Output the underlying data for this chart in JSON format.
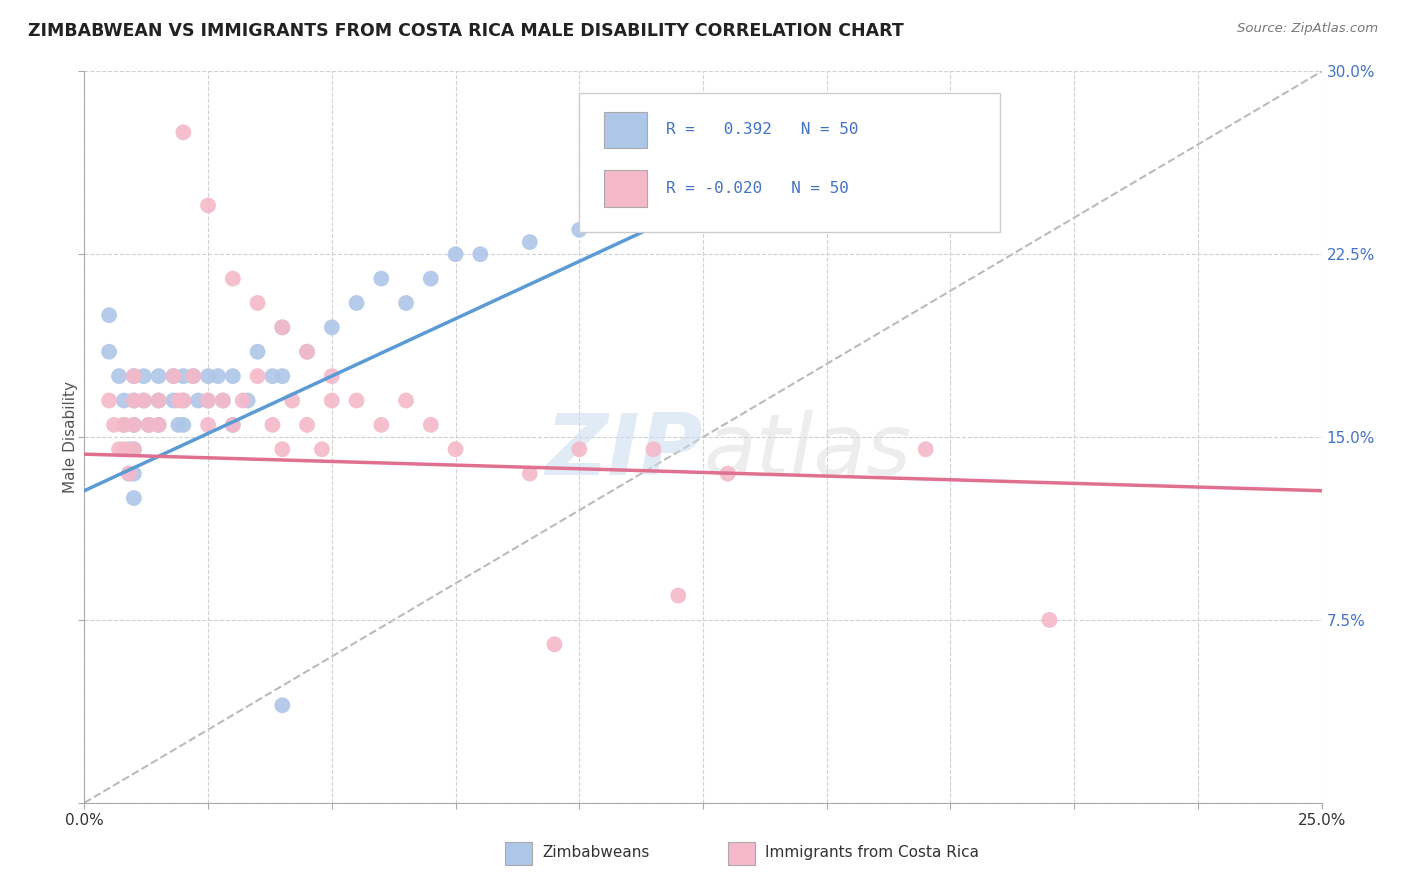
{
  "title": "ZIMBABWEAN VS IMMIGRANTS FROM COSTA RICA MALE DISABILITY CORRELATION CHART",
  "source": "Source: ZipAtlas.com",
  "ylabel": "Male Disability",
  "xlim": [
    0.0,
    0.25
  ],
  "ylim": [
    0.0,
    0.3
  ],
  "x_ticks": [
    0.0,
    0.025,
    0.05,
    0.075,
    0.1,
    0.125,
    0.15,
    0.175,
    0.2,
    0.225,
    0.25
  ],
  "x_tick_labels_shown": {
    "0.0": "0.0%",
    "0.25": "25.0%"
  },
  "y_ticks": [
    0.0,
    0.075,
    0.15,
    0.225,
    0.3
  ],
  "y_tick_labels": [
    "",
    "7.5%",
    "15.0%",
    "22.5%",
    "30.0%"
  ],
  "legend_entries": [
    "Zimbabweans",
    "Immigrants from Costa Rica"
  ],
  "blue_R": "0.392",
  "blue_N": "50",
  "pink_R": "-0.020",
  "pink_N": "50",
  "blue_color": "#aec6e8",
  "pink_color": "#f5b8c8",
  "blue_line_color": "#5b9bd5",
  "pink_line_color": "#e07090",
  "diag_line_color": "#bbbbbb",
  "watermark_color": "#d0e4f0",
  "blue_line_x": [
    0.0,
    0.135
  ],
  "blue_line_y": [
    0.128,
    0.255
  ],
  "pink_line_x": [
    0.0,
    0.25
  ],
  "pink_line_y": [
    0.143,
    0.128
  ],
  "diag_line_x": [
    0.0,
    0.25
  ],
  "diag_line_y": [
    0.0,
    0.3
  ],
  "blue_scatter_x": [
    0.005,
    0.005,
    0.007,
    0.008,
    0.008,
    0.009,
    0.009,
    0.01,
    0.01,
    0.01,
    0.01,
    0.01,
    0.01,
    0.012,
    0.012,
    0.013,
    0.015,
    0.015,
    0.015,
    0.018,
    0.018,
    0.019,
    0.02,
    0.02,
    0.02,
    0.022,
    0.023,
    0.025,
    0.025,
    0.027,
    0.028,
    0.03,
    0.03,
    0.033,
    0.035,
    0.038,
    0.04,
    0.04,
    0.045,
    0.05,
    0.055,
    0.06,
    0.065,
    0.07,
    0.075,
    0.08,
    0.09,
    0.1,
    0.115,
    0.04
  ],
  "blue_scatter_y": [
    0.2,
    0.185,
    0.175,
    0.165,
    0.155,
    0.145,
    0.135,
    0.175,
    0.165,
    0.155,
    0.145,
    0.135,
    0.125,
    0.175,
    0.165,
    0.155,
    0.175,
    0.165,
    0.155,
    0.175,
    0.165,
    0.155,
    0.175,
    0.165,
    0.155,
    0.175,
    0.165,
    0.175,
    0.165,
    0.175,
    0.165,
    0.155,
    0.175,
    0.165,
    0.185,
    0.175,
    0.175,
    0.195,
    0.185,
    0.195,
    0.205,
    0.215,
    0.205,
    0.215,
    0.225,
    0.225,
    0.23,
    0.235,
    0.245,
    0.04
  ],
  "pink_scatter_x": [
    0.005,
    0.006,
    0.007,
    0.008,
    0.008,
    0.009,
    0.01,
    0.01,
    0.01,
    0.01,
    0.012,
    0.013,
    0.015,
    0.015,
    0.018,
    0.019,
    0.02,
    0.022,
    0.025,
    0.025,
    0.028,
    0.03,
    0.032,
    0.035,
    0.038,
    0.04,
    0.042,
    0.045,
    0.048,
    0.05,
    0.055,
    0.06,
    0.065,
    0.07,
    0.075,
    0.09,
    0.1,
    0.115,
    0.13,
    0.17,
    0.02,
    0.025,
    0.03,
    0.035,
    0.04,
    0.045,
    0.05,
    0.12,
    0.195,
    0.095
  ],
  "pink_scatter_y": [
    0.165,
    0.155,
    0.145,
    0.155,
    0.145,
    0.135,
    0.175,
    0.165,
    0.155,
    0.145,
    0.165,
    0.155,
    0.165,
    0.155,
    0.175,
    0.165,
    0.165,
    0.175,
    0.165,
    0.155,
    0.165,
    0.155,
    0.165,
    0.175,
    0.155,
    0.145,
    0.165,
    0.155,
    0.145,
    0.165,
    0.165,
    0.155,
    0.165,
    0.155,
    0.145,
    0.135,
    0.145,
    0.145,
    0.135,
    0.145,
    0.275,
    0.245,
    0.215,
    0.205,
    0.195,
    0.185,
    0.175,
    0.085,
    0.075,
    0.065
  ]
}
